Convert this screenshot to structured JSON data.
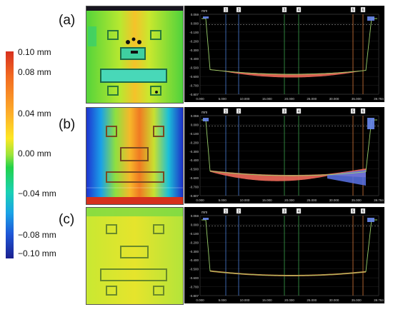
{
  "colorbar": {
    "labels": [
      "0.10 mm",
      "0.08 mm",
      "0.04 mm",
      "0.00 mm",
      "−0.04 mm",
      "−0.08 mm",
      "−0.10 mm"
    ],
    "colors": [
      "#d7301f",
      "#f26a21",
      "#fdae2a",
      "#fde724",
      "#22d24a",
      "#1ad1b4",
      "#1aa3e6",
      "#1e58d8",
      "#1b1f8f"
    ]
  },
  "panels": [
    {
      "label": "(a)"
    },
    {
      "label": "(b)"
    },
    {
      "label": "(c)"
    }
  ],
  "profile": {
    "unit_label": "mm",
    "y_ticks": [
      "0.059",
      "0.000",
      "-0.100",
      "-0.200",
      "-0.300",
      "-0.400",
      "-0.500",
      "-0.600",
      "-0.700",
      "-0.807"
    ],
    "x_ticks": [
      "0.000",
      "5.000",
      "10.000",
      "15.000",
      "20.000",
      "25.000",
      "30.000",
      "35.000",
      "39.784"
    ],
    "markers": [
      "1",
      "2",
      "3",
      "4",
      "5",
      "6"
    ]
  }
}
